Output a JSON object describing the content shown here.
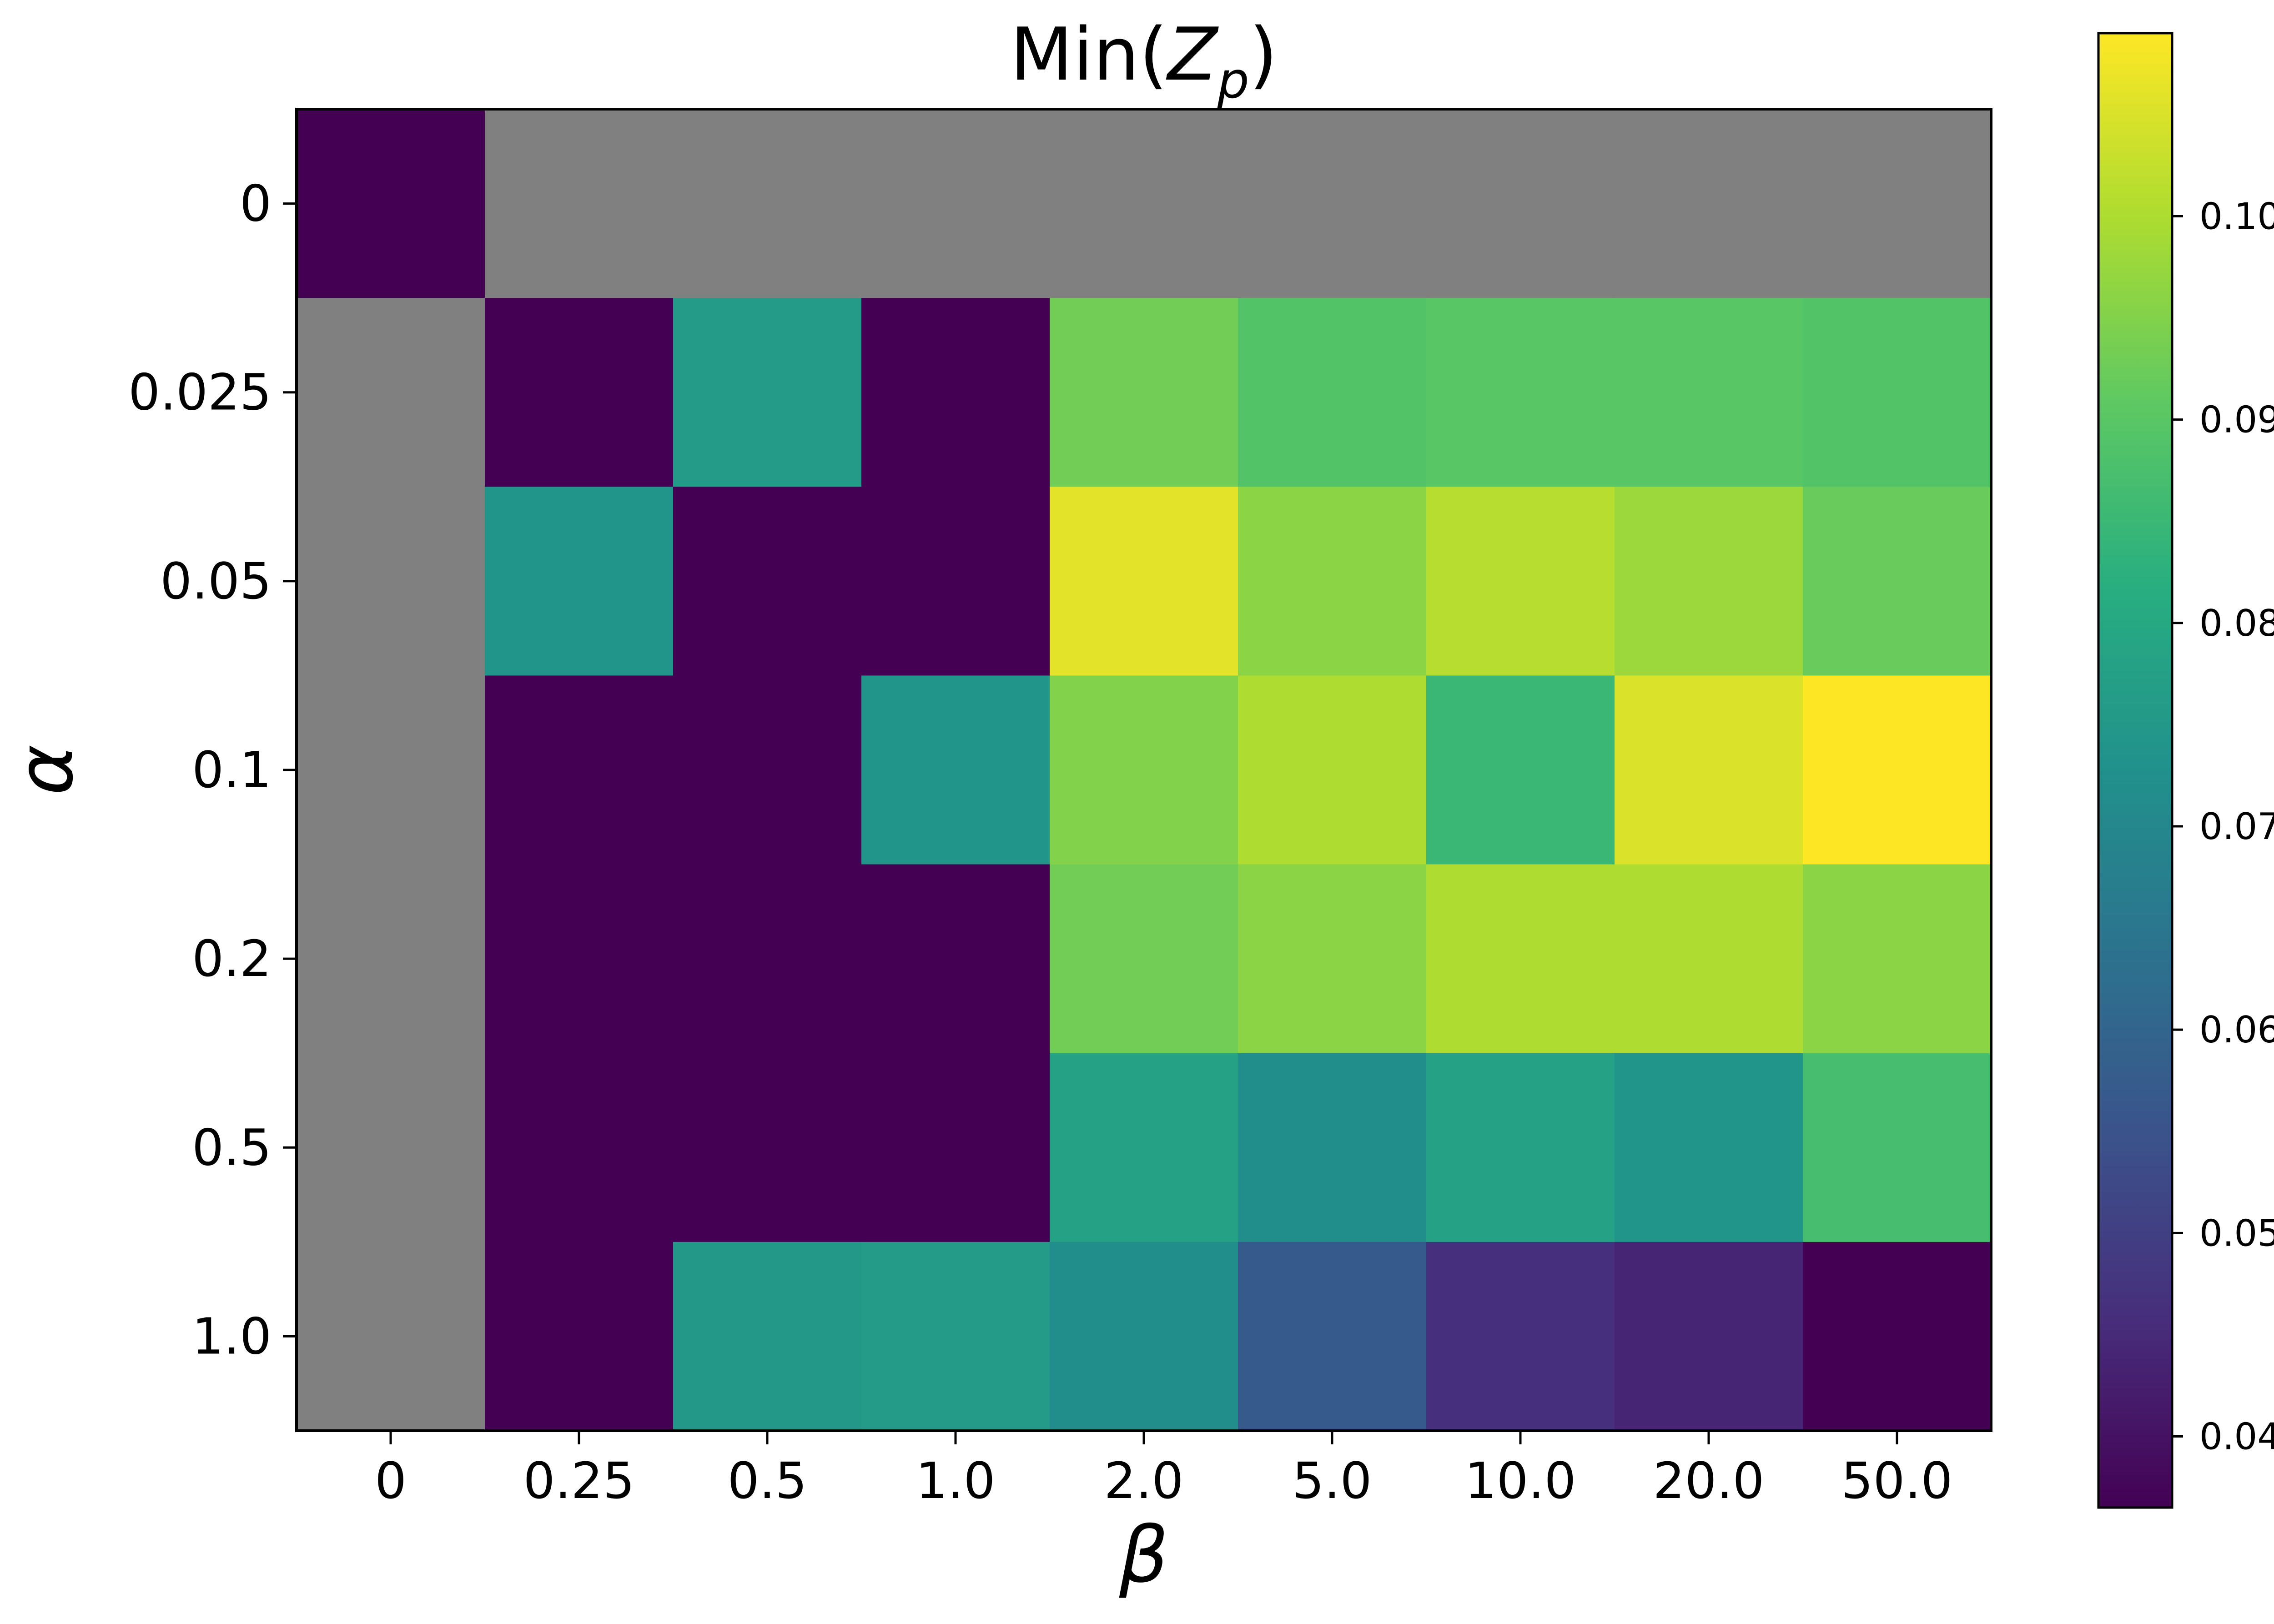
{
  "chart_data": {
    "type": "heatmap",
    "title_main": "Min(",
    "title_var": "Z",
    "title_sub": "p",
    "title_close": ")",
    "xlabel": "β",
    "ylabel": "α",
    "x_categories": [
      "0",
      "0.25",
      "0.5",
      "1.0",
      "2.0",
      "5.0",
      "10.0",
      "20.0",
      "50.0"
    ],
    "y_categories": [
      "0",
      "0.025",
      "0.05",
      "0.1",
      "0.2",
      "0.5",
      "1.0"
    ],
    "values": [
      [
        0.036,
        null,
        null,
        null,
        null,
        null,
        null,
        null,
        null
      ],
      [
        null,
        0.036,
        0.076,
        0.036,
        0.093,
        0.089,
        0.09,
        0.09,
        0.089
      ],
      [
        null,
        0.074,
        0.036,
        0.036,
        0.106,
        0.096,
        0.101,
        0.098,
        0.092
      ],
      [
        null,
        0.036,
        0.036,
        0.074,
        0.095,
        0.1,
        0.085,
        0.105,
        0.109
      ],
      [
        null,
        0.036,
        0.036,
        0.036,
        0.093,
        0.096,
        0.1,
        0.1,
        0.096
      ],
      [
        null,
        0.036,
        0.036,
        0.036,
        0.078,
        0.072,
        0.078,
        0.074,
        0.087
      ],
      [
        null,
        0.036,
        0.075,
        0.076,
        0.072,
        0.057,
        0.046,
        0.044,
        0.036
      ]
    ],
    "missing_color": "#808080",
    "colormap": "viridis",
    "colorbar": {
      "min": 0.0365,
      "max": 0.109,
      "ticks": [
        0.04,
        0.05,
        0.06,
        0.07,
        0.08,
        0.09,
        0.1
      ],
      "tick_labels": [
        "0.04",
        "0.05",
        "0.06",
        "0.07",
        "0.08",
        "0.09",
        "0.10"
      ]
    }
  }
}
